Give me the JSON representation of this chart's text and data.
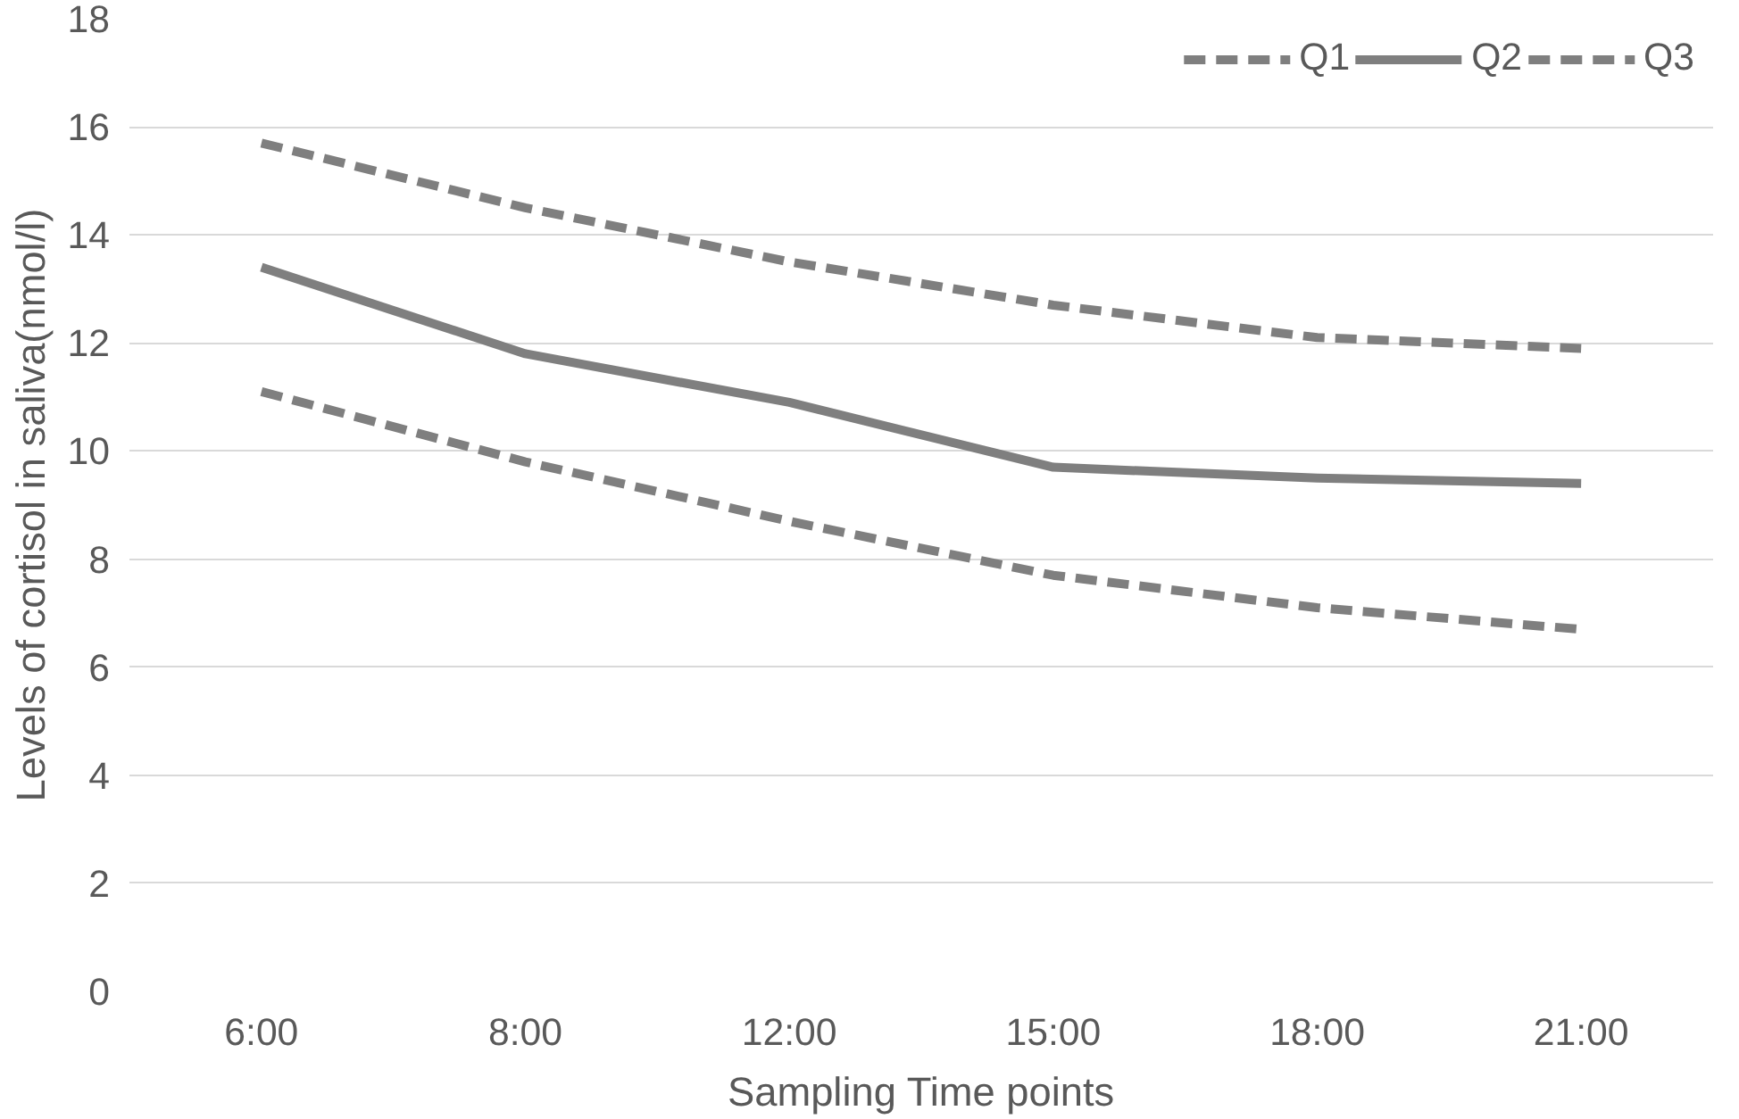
{
  "chart_data": {
    "type": "line",
    "xlabel": "Sampling Time points",
    "ylabel": "Levels of cortisol in saliva(nmol/l)",
    "categories": [
      "6:00",
      "8:00",
      "12:00",
      "15:00",
      "18:00",
      "21:00"
    ],
    "series": [
      {
        "name": "Q1",
        "color": "#7f7f7f",
        "line_style": "dashed",
        "values": [
          11.1,
          9.8,
          8.7,
          7.7,
          7.1,
          6.7
        ]
      },
      {
        "name": "Q2",
        "color": "#7f7f7f",
        "line_style": "solid",
        "values": [
          13.4,
          11.8,
          10.9,
          9.7,
          9.5,
          9.4
        ]
      },
      {
        "name": "Q3",
        "color": "#7f7f7f",
        "line_style": "dashed",
        "values": [
          15.7,
          14.5,
          13.5,
          12.7,
          12.1,
          11.9
        ]
      }
    ],
    "ylim": [
      0,
      18
    ],
    "yticks": [
      0,
      2,
      4,
      6,
      8,
      10,
      12,
      14,
      16,
      18
    ],
    "grid": "y",
    "legend": "top right",
    "marker": "none"
  }
}
